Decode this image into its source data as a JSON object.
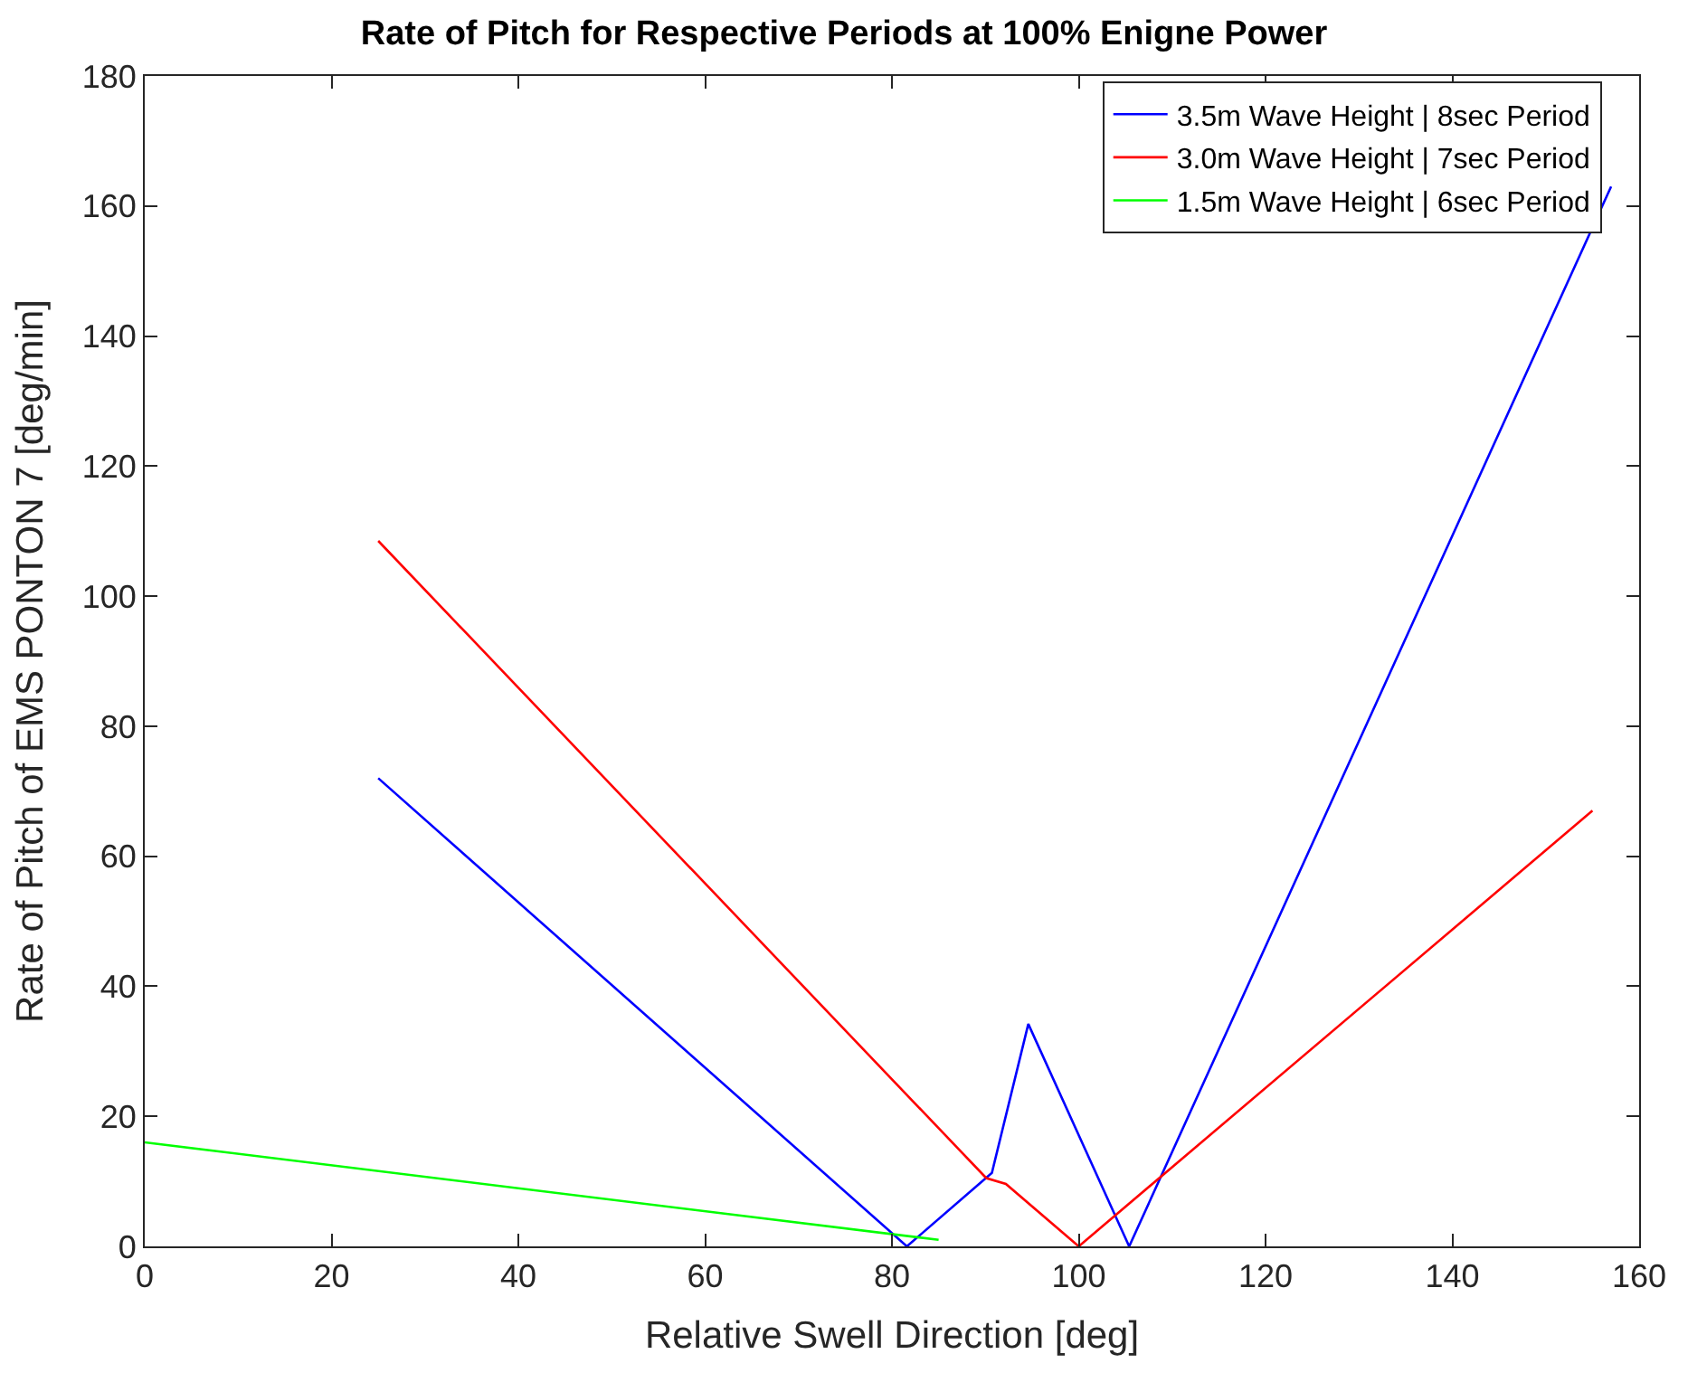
{
  "chart_data": {
    "type": "line",
    "title": "Rate of Pitch for Respective Periods at 100% Enigne Power",
    "xlabel": "Relative Swell Direction [deg]",
    "ylabel": "Rate of Pitch of EMS PONTON 7 [deg/min]",
    "xlim": [
      0,
      160
    ],
    "xticks": [
      0,
      20,
      40,
      60,
      80,
      100,
      120,
      140,
      160
    ],
    "ylim": [
      0,
      180
    ],
    "yticks": [
      0,
      20,
      40,
      60,
      80,
      100,
      120,
      140,
      160,
      180
    ],
    "grid": false,
    "legend": "top right",
    "marker": "none",
    "line_style": "solid",
    "series": [
      {
        "name": "3.5m Wave Height | 8sec Period",
        "color": "#0000ff",
        "x": [
          25,
          81.6,
          90.7,
          94.6,
          105.4,
          157
        ],
        "values": [
          72,
          0,
          11.3,
          34.2,
          0,
          163
        ]
      },
      {
        "name": "3.0m Wave Height | 7sec Period",
        "color": "#ff0000",
        "x": [
          25,
          90.1,
          92.2,
          100,
          155
        ],
        "values": [
          108.5,
          10.5,
          9.6,
          0,
          67
        ]
      },
      {
        "name": "1.5m Wave Height | 6sec Period",
        "color": "#00ff00",
        "x": [
          0,
          85
        ],
        "values": [
          16,
          1
        ]
      }
    ]
  }
}
